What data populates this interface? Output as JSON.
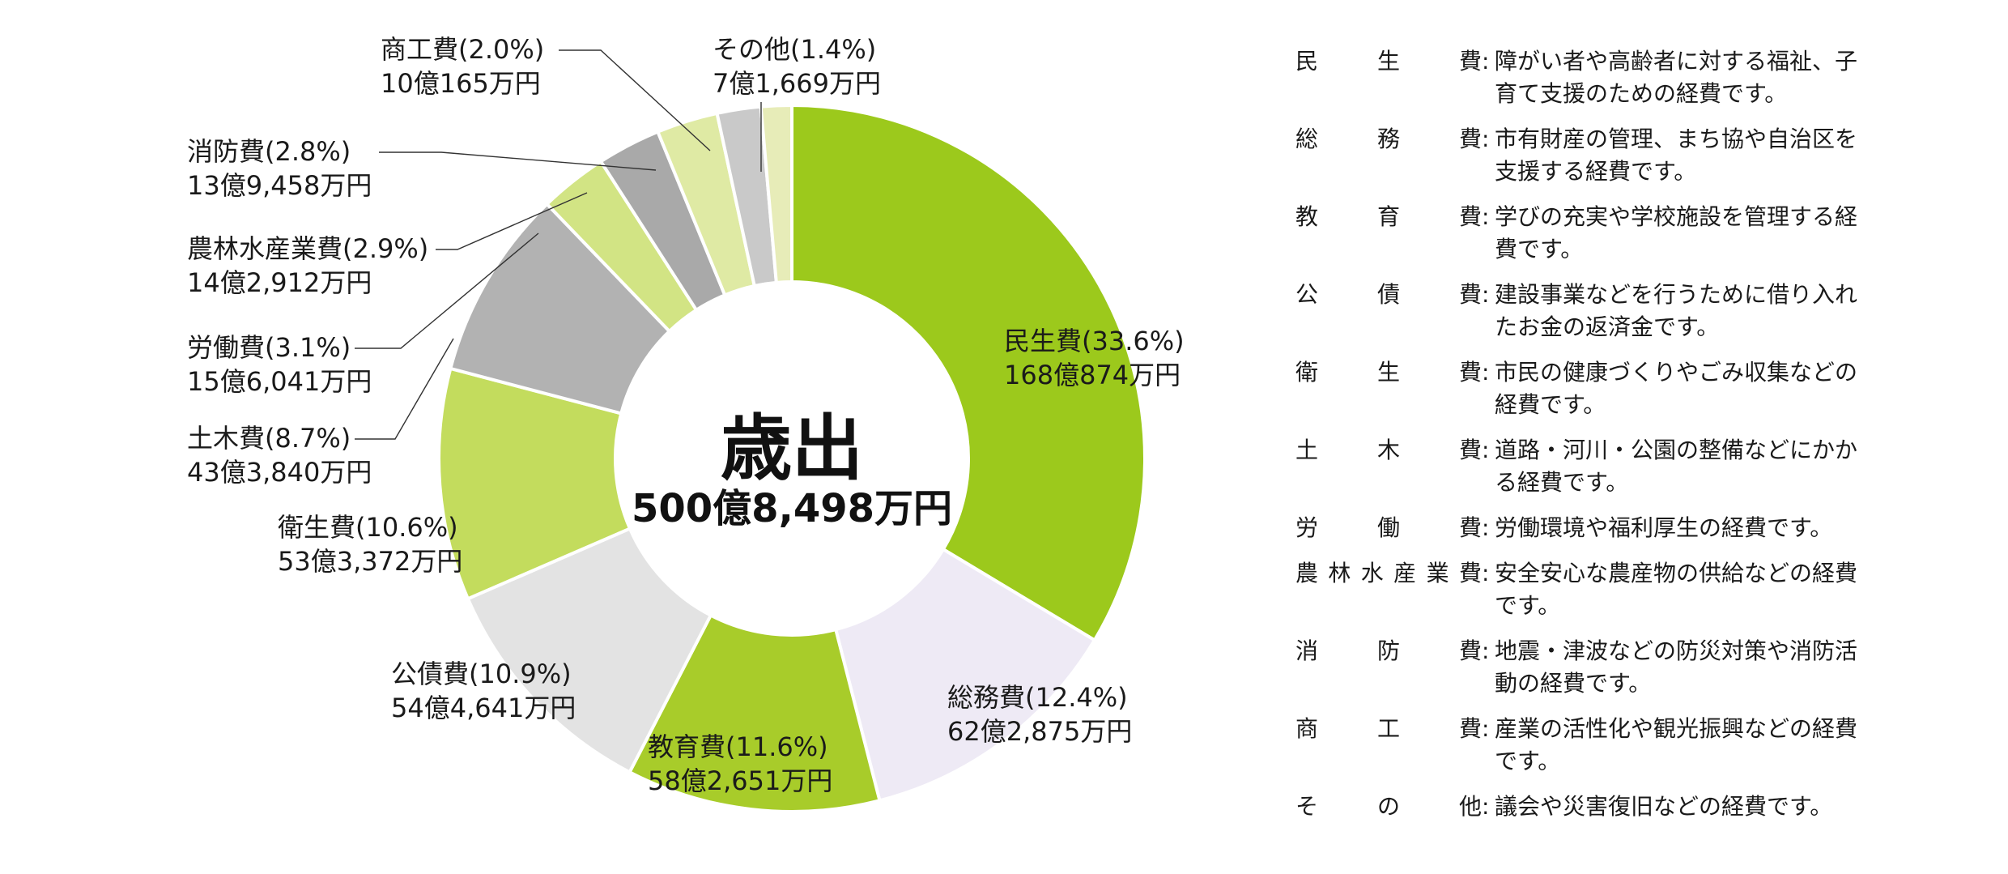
{
  "chart_data": {
    "type": "pie",
    "variant": "donut",
    "center": {
      "title": "歳出",
      "total": "500億8,498万円"
    },
    "slices": [
      {
        "name": "民生費",
        "percent": 33.6,
        "pct_label": "民生費(33.6%)",
        "amount": "168億874万円",
        "color": "#9cc91c"
      },
      {
        "name": "総務費",
        "percent": 12.4,
        "pct_label": "総務費(12.4%)",
        "amount": "62億2,875万円",
        "color": "#eeeaf5"
      },
      {
        "name": "教育費",
        "percent": 11.6,
        "pct_label": "教育費(11.6%)",
        "amount": "58億2,651万円",
        "color": "#a8cc2a"
      },
      {
        "name": "公債費",
        "percent": 10.9,
        "pct_label": "公債費(10.9%)",
        "amount": "54億4,641万円",
        "color": "#e3e3e3"
      },
      {
        "name": "衛生費",
        "percent": 10.6,
        "pct_label": "衛生費(10.6%)",
        "amount": "53億3,372万円",
        "color": "#c3dc5d"
      },
      {
        "name": "土木費",
        "percent": 8.7,
        "pct_label": "土木費(8.7%)",
        "amount": "43億3,840万円",
        "color": "#b2b2b2"
      },
      {
        "name": "労働費",
        "percent": 3.1,
        "pct_label": "労働費(3.1%)",
        "amount": "15億6,041万円",
        "color": "#d2e484"
      },
      {
        "name": "農林水産業費",
        "percent": 2.9,
        "pct_label": "農林水産業費(2.9%)",
        "amount": "14億2,912万円",
        "color": "#a9a9a9"
      },
      {
        "name": "消防費",
        "percent": 2.8,
        "pct_label": "消防費(2.8%)",
        "amount": "13億9,458万円",
        "color": "#dfeaa4"
      },
      {
        "name": "商工費",
        "percent": 2.0,
        "pct_label": "商工費(2.0%)",
        "amount": "10億165万円",
        "color": "#c9c9c9"
      },
      {
        "name": "その他",
        "percent": 1.4,
        "pct_label": "その他(1.4%)",
        "amount": "7億1,669万円",
        "color": "#e7ecb8"
      }
    ]
  },
  "legend": {
    "colon": ":",
    "items": [
      {
        "chars": [
          "民",
          "生",
          "費"
        ],
        "desc": "障がい者や高齢者に対する福祉、子育て支援のための経費です。"
      },
      {
        "chars": [
          "総",
          "務",
          "費"
        ],
        "desc": "市有財産の管理、まち協や自治区を支援する経費です。"
      },
      {
        "chars": [
          "教",
          "育",
          "費"
        ],
        "desc": "学びの充実や学校施設を管理する経費です。"
      },
      {
        "chars": [
          "公",
          "債",
          "費"
        ],
        "desc": "建設事業などを行うために借り入れたお金の返済金です。"
      },
      {
        "chars": [
          "衛",
          "生",
          "費"
        ],
        "desc": "市民の健康づくりやごみ収集などの経費です。"
      },
      {
        "chars": [
          "土",
          "木",
          "費"
        ],
        "desc": "道路・河川・公園の整備などにかかる経費です。"
      },
      {
        "chars": [
          "労",
          "働",
          "費"
        ],
        "desc": "労働環境や福利厚生の経費です。"
      },
      {
        "chars": [
          "農",
          "林",
          "水",
          "産",
          "業",
          "費"
        ],
        "desc": "安全安心な農産物の供給などの経費です。"
      },
      {
        "chars": [
          "消",
          "防",
          "費"
        ],
        "desc": "地震・津波などの防災対策や消防活動の経費です。"
      },
      {
        "chars": [
          "商",
          "工",
          "費"
        ],
        "desc": "産業の活性化や観光振興などの経費です。"
      },
      {
        "chars": [
          "そ",
          "の",
          "他"
        ],
        "desc": "議会や災害復旧などの経費です。"
      }
    ]
  }
}
